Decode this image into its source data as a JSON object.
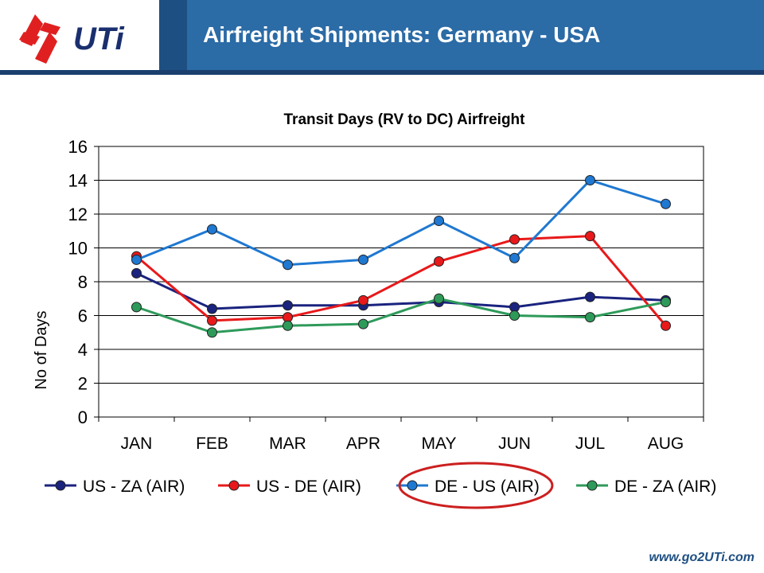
{
  "header": {
    "logo_text": "UTi",
    "title": "Airfreight Shipments: Germany - USA"
  },
  "footer": {
    "url": "www.go2UTi.com"
  },
  "colors": {
    "title_bar": "#2b6ba6",
    "logo_red": "#e02020",
    "logo_navy": "#1a2f6e",
    "highlight_ring": "#cc1f1f"
  },
  "chart_data": {
    "type": "line",
    "title": "Transit Days (RV to DC) Airfreight",
    "xlabel": "",
    "ylabel": "No of Days",
    "ylim": [
      0,
      16
    ],
    "yticks": [
      0,
      2,
      4,
      6,
      8,
      10,
      12,
      14,
      16
    ],
    "grid": true,
    "legend_position": "bottom",
    "highlighted_series": "DE - US (AIR)",
    "categories": [
      "JAN",
      "FEB",
      "MAR",
      "APR",
      "MAY",
      "JUN",
      "JUL",
      "AUG"
    ],
    "series": [
      {
        "name": "US - ZA (AIR)",
        "color": "#1a237e",
        "values": [
          8.5,
          6.4,
          6.6,
          6.6,
          6.8,
          6.5,
          7.1,
          6.9
        ]
      },
      {
        "name": "US - DE (AIR)",
        "color": "#e8191a",
        "values": [
          9.5,
          5.7,
          5.9,
          6.9,
          9.2,
          10.5,
          10.7,
          5.4
        ]
      },
      {
        "name": "DE - US (AIR)",
        "color": "#1f78d1",
        "values": [
          9.3,
          11.1,
          9.0,
          9.3,
          11.6,
          9.4,
          14.0,
          12.6
        ]
      },
      {
        "name": "DE - ZA (AIR)",
        "color": "#2e9a5a",
        "values": [
          6.5,
          5.0,
          5.4,
          5.5,
          7.0,
          6.0,
          5.9,
          6.8
        ]
      }
    ]
  }
}
